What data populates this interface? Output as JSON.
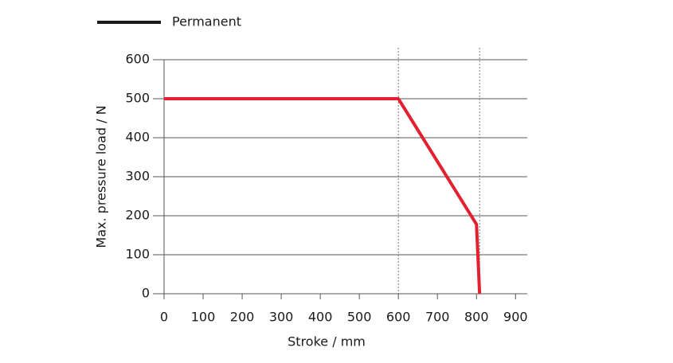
{
  "chart_data": {
    "type": "line",
    "x_label": "Stroke / mm",
    "y_label": "Max. pressure load / N",
    "series": [
      {
        "name": "Permanent",
        "color": "#e3202f",
        "x": [
          0,
          600,
          800,
          808
        ],
        "values": [
          500,
          500,
          178,
          0
        ]
      }
    ],
    "legend_color": "#1a1a1a",
    "xlim": [
      0,
      930
    ],
    "xticks": [
      0,
      100,
      200,
      300,
      400,
      500,
      600,
      700,
      800,
      900
    ],
    "ylim": [
      0,
      600
    ],
    "yticks": [
      0,
      100,
      200,
      300,
      400,
      500,
      600
    ],
    "vlines": [
      600,
      808
    ],
    "grid": true,
    "legend": "top-left"
  }
}
